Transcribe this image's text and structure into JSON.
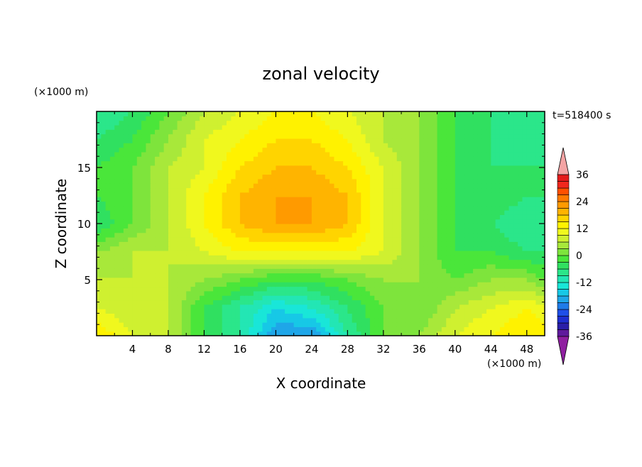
{
  "chart_data": {
    "type": "heatmap",
    "title": "zonal velocity",
    "xlabel": "X coordinate",
    "ylabel": "Z coordinate",
    "x_unit": "(×1000 m)",
    "y_unit": "(×1000 m)",
    "time_label": "t=518400 s",
    "xlim": [
      0,
      50
    ],
    "ylim": [
      0,
      20
    ],
    "x_ticks": [
      4,
      8,
      12,
      16,
      20,
      24,
      28,
      32,
      36,
      40,
      44,
      48
    ],
    "y_ticks": [
      5,
      10,
      15
    ],
    "colorbar": {
      "levels": [
        -42,
        -39,
        -36,
        -33,
        -30,
        -27,
        -24,
        -21,
        -18,
        -15,
        -12,
        -9,
        -6,
        -3,
        0,
        3,
        6,
        9,
        12,
        15,
        18,
        21,
        24,
        27,
        30,
        33,
        36,
        39,
        42
      ],
      "tick_labels": [
        "36",
        "24",
        "12",
        "0",
        "-12",
        "-24",
        "-36"
      ],
      "tick_values": [
        36,
        24,
        12,
        0,
        -12,
        -24,
        -36
      ],
      "extend": "both",
      "colors": [
        "#8f1fa0",
        "#5f1a9c",
        "#2a1fa8",
        "#1f2fd0",
        "#1f4fe8",
        "#1f7be8",
        "#1fa6e8",
        "#17c8e6",
        "#19e6d8",
        "#23e6b4",
        "#2be68a",
        "#30e060",
        "#4ae63a",
        "#7ee43c",
        "#a8e83a",
        "#cff030",
        "#f0f81e",
        "#fff200",
        "#ffd400",
        "#ffb400",
        "#ff9a00",
        "#ff7a00",
        "#ff5000",
        "#f0281e",
        "#e41c1c",
        "#f4a4a4"
      ]
    },
    "grid": false,
    "field_description_points": "approximate zonal velocity field in data units (m/s), sampled on coarse grid",
    "x": [
      0,
      4,
      8,
      12,
      16,
      20,
      24,
      28,
      32,
      36,
      40,
      44,
      48,
      50
    ],
    "z": [
      0,
      2.5,
      5,
      7.5,
      10,
      12.5,
      15,
      17.5,
      20
    ],
    "values": [
      [
        12,
        6,
        3,
        -6,
        -12,
        -24,
        -24,
        -12,
        -3,
        0,
        6,
        9,
        12,
        12
      ],
      [
        6,
        3,
        3,
        -6,
        -12,
        -18,
        -15,
        -9,
        -3,
        -3,
        3,
        6,
        9,
        6
      ],
      [
        3,
        3,
        3,
        0,
        -3,
        -6,
        -6,
        -3,
        0,
        0,
        -3,
        0,
        0,
        -3
      ],
      [
        0,
        3,
        3,
        6,
        9,
        9,
        9,
        9,
        6,
        0,
        -6,
        -6,
        -9,
        -9
      ],
      [
        -9,
        -3,
        3,
        9,
        15,
        18,
        18,
        15,
        6,
        0,
        -6,
        -9,
        -12,
        -9
      ],
      [
        -6,
        -3,
        3,
        9,
        15,
        18,
        18,
        15,
        6,
        0,
        -6,
        -6,
        -9,
        -9
      ],
      [
        -6,
        -3,
        3,
        6,
        12,
        15,
        15,
        12,
        6,
        0,
        -6,
        -9,
        -9,
        -9
      ],
      [
        -9,
        -6,
        0,
        6,
        9,
        12,
        12,
        9,
        3,
        0,
        -6,
        -9,
        -12,
        -12
      ],
      [
        -12,
        -9,
        -3,
        3,
        6,
        9,
        9,
        6,
        3,
        0,
        -6,
        -9,
        -12,
        -12
      ]
    ]
  }
}
